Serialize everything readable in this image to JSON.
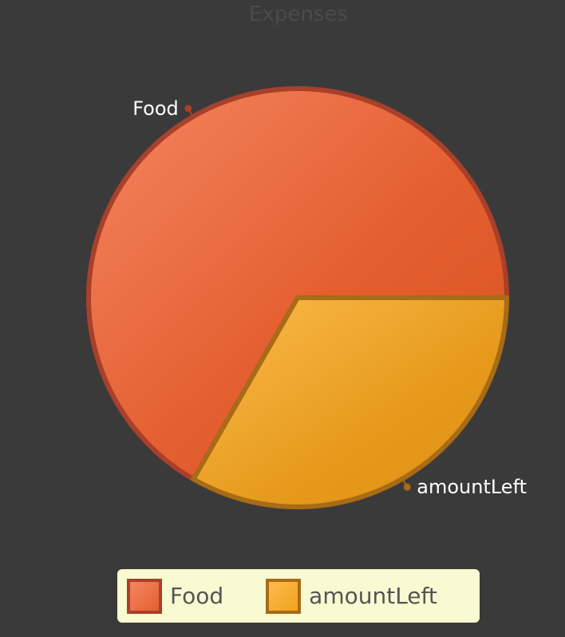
{
  "chart_data": {
    "type": "pie",
    "title": "Expenses",
    "slices": [
      {
        "name": "Food",
        "value": 66.7,
        "color": "#e45f30",
        "border": "#a9402a"
      },
      {
        "name": "amountLeft",
        "value": 33.3,
        "color": "#f0a21e",
        "border": "#a86b16"
      }
    ],
    "start_angle_deg": 0,
    "direction": "counterclockwise",
    "legend": {
      "position": "bottom",
      "background": "#fafad2"
    }
  }
}
